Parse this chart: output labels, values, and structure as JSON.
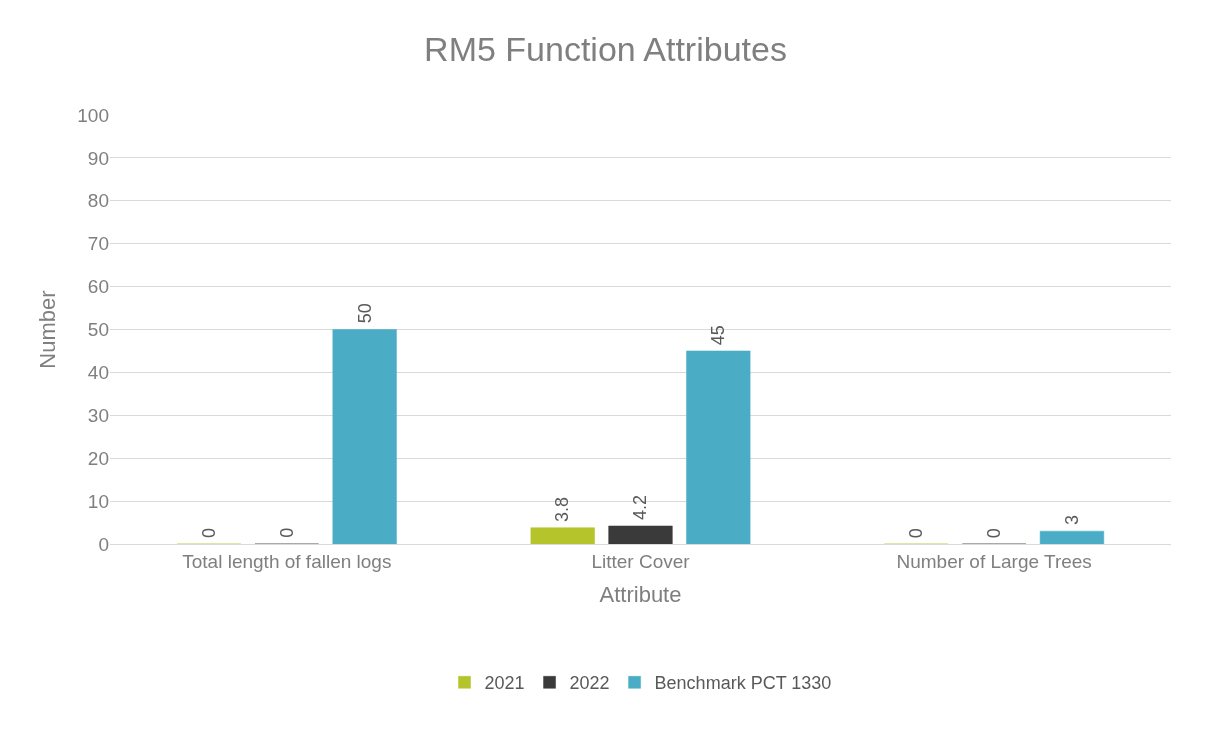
{
  "chart_data": {
    "type": "bar",
    "title": "RM5 Function Attributes",
    "xlabel": "Attribute",
    "ylabel": "Number",
    "categories": [
      "Total length of fallen logs",
      "Litter Cover",
      "Number of Large Trees"
    ],
    "series": [
      {
        "name": "2021",
        "color": "#b5c42a",
        "values": [
          0,
          3.8,
          0
        ]
      },
      {
        "name": "2022",
        "color": "#3a3a3a",
        "values": [
          0,
          4.2,
          0
        ]
      },
      {
        "name": "Benchmark PCT 1330",
        "color": "#4bacc6",
        "values": [
          50,
          45,
          3
        ]
      }
    ],
    "ylim": [
      0,
      100
    ],
    "yticks": [
      0,
      10,
      20,
      30,
      40,
      50,
      60,
      70,
      80,
      90,
      100
    ],
    "grid": "y",
    "legend": "bottom",
    "data_labels": true
  }
}
